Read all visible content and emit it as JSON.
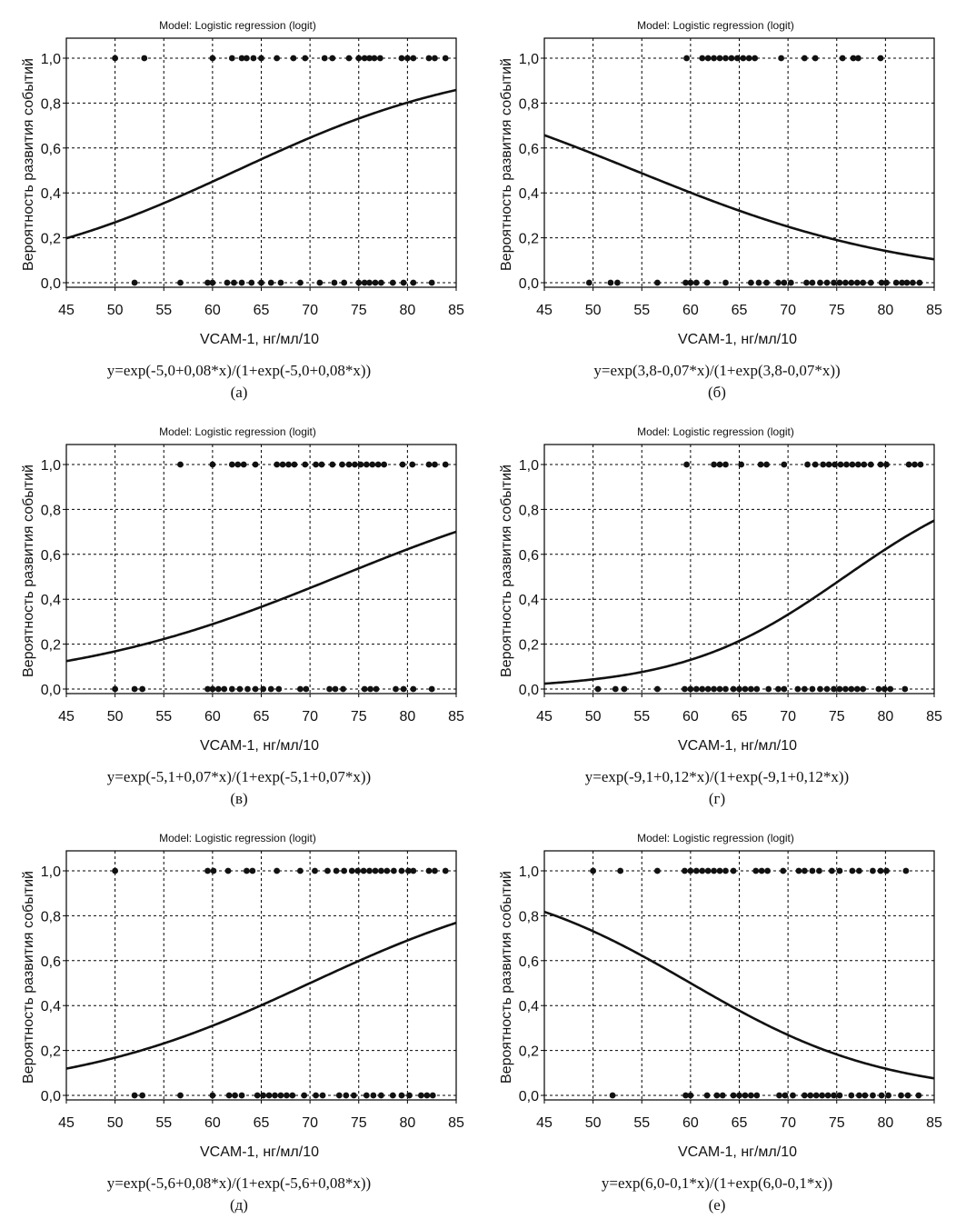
{
  "chart_data": [
    {
      "type": "scatter",
      "panel_letter": "(а)",
      "title": "Model: Logistic regression (logit)",
      "xlabel": "VCAM-1, нг/мл/10",
      "ylabel": "Вероятность развития событий",
      "equation": "y=exp(-5,0+0,08*x)/(1+exp(-5,0+0,08*x))",
      "xlim": [
        45,
        85
      ],
      "ylim": [
        0,
        1
      ],
      "x_ticks": [
        "45",
        "50",
        "55",
        "60",
        "65",
        "70",
        "75",
        "80",
        "85"
      ],
      "y_ticks": [
        "0,0",
        "0,2",
        "0,4",
        "0,6",
        "0,8",
        "1,0"
      ],
      "grid": true,
      "curve": {
        "b0": -5.0,
        "b1": 0.08
      },
      "points_y1": [
        50,
        53,
        60,
        62,
        63,
        63.5,
        64.2,
        65,
        66.6,
        68.3,
        69.5,
        71.5,
        72.3,
        74,
        75,
        75.6,
        76.1,
        76.6,
        77.2,
        79.4,
        80,
        80.6,
        82.2,
        82.8,
        83.9
      ],
      "points_y0": [
        52,
        56.7,
        59.5,
        60,
        61.5,
        62.2,
        63,
        64,
        65,
        66,
        67,
        69,
        71,
        72.5,
        73.5,
        75,
        75.6,
        76.1,
        76.7,
        77.3,
        78.5,
        79.6,
        80.6,
        82.5
      ]
    },
    {
      "type": "scatter",
      "panel_letter": "(б)",
      "title": "Model: Logistic regression (logit)",
      "xlabel": "VCAM-1, нг/мл/10",
      "ylabel": "Вероятность развития событий",
      "equation": "y=exp(3,8-0,07*x)/(1+exp(3,8-0,07*x))",
      "xlim": [
        45,
        85
      ],
      "ylim": [
        0,
        1
      ],
      "x_ticks": [
        "45",
        "50",
        "55",
        "60",
        "65",
        "70",
        "75",
        "80",
        "85"
      ],
      "y_ticks": [
        "0,0",
        "0,2",
        "0,4",
        "0,6",
        "0,8",
        "1,0"
      ],
      "grid": true,
      "curve": {
        "b0": 3.8,
        "b1": -0.07
      },
      "points_y1": [
        59.6,
        61.2,
        61.8,
        62.4,
        63,
        63.6,
        64.2,
        64.8,
        65.4,
        66,
        66.6,
        69.3,
        71.7,
        72.8,
        75.6,
        76.7,
        77.2,
        79.5
      ],
      "points_y0": [
        49.6,
        51.8,
        52.5,
        56.6,
        59.5,
        60,
        60.6,
        61.7,
        63.6,
        66.2,
        67,
        67.8,
        69,
        69.6,
        70.3,
        71.9,
        72.5,
        73.3,
        74,
        74.7,
        75.3,
        75.9,
        76.5,
        77.1,
        77.7,
        78.5,
        79.6,
        80.1,
        81.1,
        81.7,
        82.2,
        82.8,
        83.5
      ]
    },
    {
      "type": "scatter",
      "panel_letter": "(в)",
      "title": "Model: Logistic regression (logit)",
      "xlabel": "VCAM-1, нг/мл/10",
      "ylabel": "Вероятность развития событий",
      "equation": "y=exp(-5,1+0,07*x)/(1+exp(-5,1+0,07*x))",
      "xlim": [
        45,
        85
      ],
      "ylim": [
        0,
        1
      ],
      "x_ticks": [
        "45",
        "50",
        "55",
        "60",
        "65",
        "70",
        "75",
        "80",
        "85"
      ],
      "y_ticks": [
        "0,0",
        "0,2",
        "0,4",
        "0,6",
        "0,8",
        "1,0"
      ],
      "grid": true,
      "curve": {
        "b0": -5.1,
        "b1": 0.07
      },
      "points_y1": [
        56.7,
        60,
        62,
        62.6,
        63.2,
        64.4,
        66.6,
        67.2,
        67.8,
        68.4,
        69.5,
        70.6,
        71.2,
        72.3,
        73.3,
        74,
        74.6,
        75.2,
        75.8,
        76.4,
        77,
        77.6,
        79.5,
        80.5,
        82.2,
        82.8,
        83.9
      ],
      "points_y0": [
        50,
        52,
        52.8,
        59.5,
        60,
        60.6,
        61.2,
        62,
        62.8,
        63.6,
        64.4,
        65.2,
        66,
        66.8,
        69,
        69.6,
        72,
        72.6,
        73.4,
        75.6,
        76.2,
        76.8,
        78.8,
        79.6,
        80.6,
        82.5
      ]
    },
    {
      "type": "scatter",
      "panel_letter": "(г)",
      "title": "Model: Logistic regression (logit)",
      "xlabel": "VCAM-1, нг/мл/10",
      "ylabel": "Вероятность развития событий",
      "equation": "y=exp(-9,1+0,12*x)/(1+exp(-9,1+0,12*x))",
      "xlim": [
        45,
        85
      ],
      "ylim": [
        0,
        1
      ],
      "x_ticks": [
        "45",
        "50",
        "55",
        "60",
        "65",
        "70",
        "75",
        "80",
        "85"
      ],
      "y_ticks": [
        "0,0",
        "0,2",
        "0,4",
        "0,6",
        "0,8",
        "1,0"
      ],
      "grid": true,
      "curve": {
        "b0": -9.1,
        "b1": 0.12
      },
      "points_y1": [
        59.6,
        62.4,
        63,
        63.6,
        65.2,
        67.2,
        67.8,
        69.6,
        72,
        72.8,
        73.6,
        74.2,
        74.8,
        75.4,
        76,
        76.6,
        77.2,
        77.8,
        78.5,
        79.5,
        80.1,
        82.4,
        83,
        83.6
      ],
      "points_y0": [
        50.5,
        52.3,
        53.2,
        56.6,
        59.4,
        60,
        60.6,
        61.2,
        61.8,
        62.4,
        63,
        63.6,
        64.4,
        65,
        65.6,
        66.2,
        66.8,
        68,
        69,
        69.6,
        71,
        71.7,
        72.5,
        73.3,
        74,
        74.7,
        75.3,
        75.9,
        76.5,
        77.1,
        77.7,
        79.3,
        79.9,
        80.5,
        82
      ]
    },
    {
      "type": "scatter",
      "panel_letter": "(д)",
      "title": "Model: Logistic regression (logit)",
      "xlabel": "VCAM-1, нг/мл/10",
      "ylabel": "Вероятность развития событий",
      "equation": "y=exp(-5,6+0,08*x)/(1+exp(-5,6+0,08*x))",
      "xlim": [
        45,
        85
      ],
      "ylim": [
        0,
        1
      ],
      "x_ticks": [
        "45",
        "50",
        "55",
        "60",
        "65",
        "70",
        "75",
        "80",
        "85"
      ],
      "y_ticks": [
        "0,0",
        "0,2",
        "0,4",
        "0,6",
        "0,8",
        "1,0"
      ],
      "grid": true,
      "curve": {
        "b0": -5.6,
        "b1": 0.08
      },
      "points_y1": [
        50,
        59.5,
        60.1,
        61.6,
        63.5,
        64.1,
        66.6,
        69,
        70.5,
        71.8,
        72.7,
        73.5,
        74.3,
        74.9,
        75.5,
        76.1,
        76.7,
        77.3,
        77.9,
        78.6,
        79.4,
        80.1,
        80.6,
        82.2,
        82.8,
        83.9
      ],
      "points_y0": [
        52,
        52.8,
        56.7,
        60,
        61.7,
        62.3,
        63,
        64.6,
        65.2,
        65.8,
        66.4,
        67,
        67.6,
        68.2,
        69.4,
        70.6,
        71.3,
        73,
        73.7,
        74.5,
        75.8,
        76.5,
        77.3,
        78.5,
        79.4,
        80.2,
        81.4,
        82,
        82.6
      ]
    },
    {
      "type": "scatter",
      "panel_letter": "(е)",
      "title": "Model: Logistic regression (logit)",
      "xlabel": "VCAM-1, нг/мл/10",
      "ylabel": "Вероятность развития событий",
      "equation": "y=exp(6,0-0,1*x)/(1+exp(6,0-0,1*x))",
      "xlim": [
        45,
        85
      ],
      "ylim": [
        0,
        1
      ],
      "x_ticks": [
        "45",
        "50",
        "55",
        "60",
        "65",
        "70",
        "75",
        "80",
        "85"
      ],
      "y_ticks": [
        "0,0",
        "0,2",
        "0,4",
        "0,6",
        "0,8",
        "1,0"
      ],
      "grid": true,
      "curve": {
        "b0": 6.0,
        "b1": -0.1
      },
      "points_y1": [
        50,
        52.8,
        56.6,
        59.4,
        60,
        60.6,
        61.2,
        61.8,
        62.4,
        63,
        63.6,
        64.4,
        66.7,
        67.3,
        67.9,
        69.5,
        71.1,
        71.7,
        72.5,
        73.2,
        74.5,
        75.3,
        76.6,
        77.3,
        78.7,
        79.5,
        80.1,
        82.1
      ],
      "points_y0": [
        52,
        59.5,
        60,
        61.7,
        62.7,
        63.3,
        64.4,
        65,
        65.6,
        66.2,
        66.8,
        69.1,
        69.7,
        70.5,
        71.7,
        72.3,
        72.9,
        73.5,
        74.1,
        74.7,
        75.3,
        76.5,
        77.3,
        77.9,
        78.7,
        79.6,
        80.3,
        81.6,
        82.3,
        83.4
      ]
    }
  ]
}
